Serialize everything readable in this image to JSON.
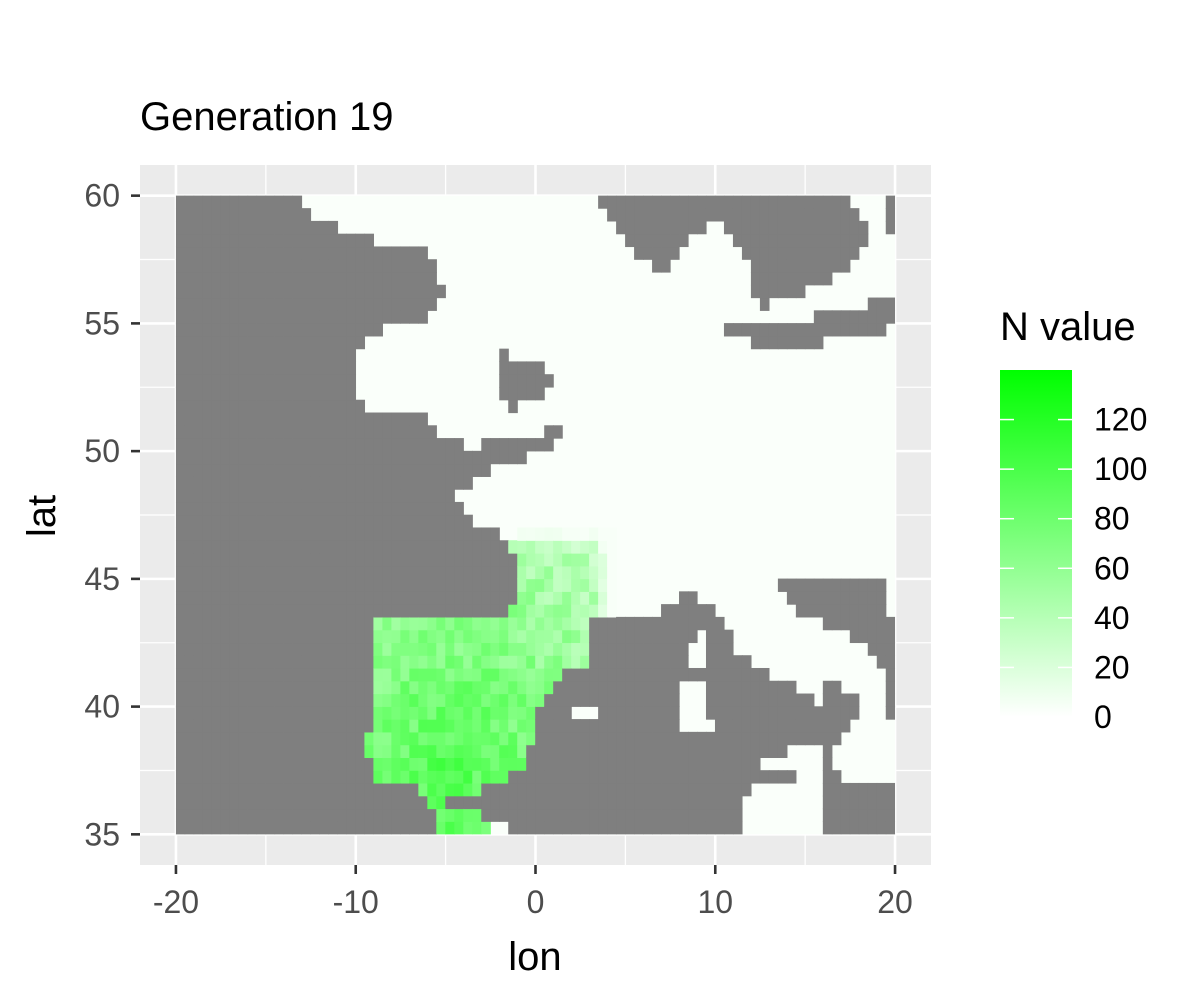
{
  "chart_data": {
    "type": "heatmap",
    "title": "Generation 19",
    "xlabel": "lon",
    "ylabel": "lat",
    "xlim": [
      -22,
      22
    ],
    "ylim": [
      33.8,
      61.2
    ],
    "x_ticks": [
      -20,
      -10,
      0,
      10,
      20
    ],
    "x_tick_labels": [
      "-20",
      "-10",
      "0",
      "10",
      "20"
    ],
    "y_ticks": [
      35,
      40,
      45,
      50,
      55,
      60
    ],
    "y_tick_labels": [
      "35",
      "40",
      "45",
      "50",
      "55",
      "60"
    ],
    "grid": true,
    "panel_background": "#ebebeb",
    "grid_color": "#ffffff",
    "sea_color": "#7f7f7f",
    "land_zero_color": "#fafffa",
    "legend": {
      "title": "N value",
      "position": "right",
      "breaks": [
        0,
        20,
        40,
        60,
        80,
        100,
        120
      ],
      "labels": [
        "0",
        "20",
        "40",
        "60",
        "80",
        "100",
        "120"
      ],
      "range": [
        0,
        140
      ],
      "low_color": "#ffffff",
      "high_color": "#00ff00"
    },
    "grid_extent": {
      "lon": [
        -20,
        20
      ],
      "lat": [
        35,
        60
      ]
    },
    "cell_size_deg": 0.5,
    "sea_polygons": [
      [
        [
          -20,
          35
        ],
        [
          -20,
          60
        ],
        [
          -13.5,
          60
        ],
        [
          -12,
          59
        ],
        [
          -8,
          58
        ],
        [
          -6,
          58
        ],
        [
          -5,
          56
        ],
        [
          -6,
          55
        ],
        [
          -8,
          55
        ],
        [
          -10,
          54
        ],
        [
          -10,
          52
        ],
        [
          -9,
          51.5
        ],
        [
          -6,
          51.5
        ],
        [
          -5,
          50.3
        ],
        [
          -3,
          50.2
        ],
        [
          -1,
          50.6
        ],
        [
          1,
          50.8
        ],
        [
          1.5,
          51
        ],
        [
          1,
          50
        ],
        [
          -2,
          49.5
        ],
        [
          -4.5,
          48.4
        ],
        [
          -4,
          47.5
        ],
        [
          -2.5,
          47
        ],
        [
          -1.2,
          46
        ],
        [
          -1.2,
          44
        ],
        [
          -2,
          43.4
        ],
        [
          -4,
          43.5
        ],
        [
          -7,
          43.7
        ],
        [
          -9,
          43.2
        ],
        [
          -9,
          42
        ],
        [
          -8.8,
          40
        ],
        [
          -9.5,
          38.7
        ],
        [
          -8.8,
          37
        ],
        [
          -7,
          37
        ],
        [
          -6,
          36.2
        ],
        [
          -5.5,
          35.5
        ],
        [
          -5,
          35
        ],
        [
          -20,
          35
        ]
      ],
      [
        [
          -1.5,
          35
        ],
        [
          0,
          35.7
        ],
        [
          3,
          36.8
        ],
        [
          6,
          37
        ],
        [
          9,
          37.2
        ],
        [
          10,
          37
        ],
        [
          11,
          36.7
        ],
        [
          11,
          35
        ],
        [
          -1.5,
          35
        ]
      ],
      [
        [
          3,
          43.3
        ],
        [
          3,
          41.8
        ],
        [
          1,
          41
        ],
        [
          0,
          39.5
        ],
        [
          0.2,
          38.7
        ],
        [
          -0.5,
          38.2
        ],
        [
          -0.8,
          37.6
        ],
        [
          -2,
          36.8
        ],
        [
          -4,
          36.7
        ],
        [
          -5.2,
          36.2
        ],
        [
          -3,
          35.7
        ],
        [
          -1.5,
          35.2
        ],
        [
          -1.3,
          35
        ],
        [
          11.2,
          35
        ],
        [
          12,
          37
        ],
        [
          14,
          37
        ],
        [
          15.5,
          38
        ],
        [
          16,
          38.5
        ],
        [
          16.5,
          39.5
        ],
        [
          15.5,
          40.3
        ],
        [
          14,
          41
        ],
        [
          13,
          41.2
        ],
        [
          11,
          42.4
        ],
        [
          10.2,
          43.8
        ],
        [
          8.5,
          44.4
        ],
        [
          7,
          43.7
        ],
        [
          5,
          43.3
        ],
        [
          3,
          43.3
        ]
      ],
      [
        [
          14,
          45
        ],
        [
          13.5,
          44.5
        ],
        [
          15,
          43.5
        ],
        [
          17,
          43
        ],
        [
          19,
          42
        ],
        [
          19.5,
          41
        ],
        [
          19.3,
          40
        ],
        [
          20,
          39
        ],
        [
          20,
          42
        ],
        [
          19.5,
          45
        ],
        [
          14,
          45
        ]
      ],
      [
        [
          16,
          41
        ],
        [
          17,
          40.7
        ],
        [
          18.5,
          40.1
        ],
        [
          17,
          39
        ],
        [
          16.5,
          38
        ],
        [
          17.5,
          37
        ],
        [
          20,
          37
        ],
        [
          20,
          35
        ],
        [
          16,
          35
        ],
        [
          16,
          41
        ]
      ],
      [
        [
          -2,
          53.8
        ],
        [
          -2,
          52
        ],
        [
          -1.5,
          51.6
        ],
        [
          1.5,
          52.5
        ],
        [
          0,
          53.5
        ],
        [
          -2,
          53.8
        ]
      ],
      [
        [
          3.5,
          60
        ],
        [
          5,
          58
        ],
        [
          7,
          57
        ],
        [
          8,
          57.8
        ],
        [
          9,
          58.5
        ],
        [
          10.5,
          59
        ],
        [
          11.5,
          58
        ],
        [
          12.2,
          56
        ],
        [
          12.8,
          55.6
        ],
        [
          14,
          56
        ],
        [
          16,
          56.5
        ],
        [
          18,
          57.5
        ],
        [
          18.5,
          58.7
        ],
        [
          17,
          60
        ],
        [
          3.5,
          60
        ]
      ],
      [
        [
          10,
          55
        ],
        [
          12,
          54.2
        ],
        [
          14,
          54
        ],
        [
          18,
          54.5
        ],
        [
          21,
          55
        ],
        [
          20,
          56
        ],
        [
          17,
          55.5
        ],
        [
          14,
          55
        ],
        [
          12,
          55
        ],
        [
          10,
          55
        ]
      ],
      [
        [
          19.5,
          60
        ],
        [
          19.5,
          59
        ],
        [
          20,
          58
        ],
        [
          20,
          60
        ],
        [
          19.5,
          60
        ]
      ]
    ],
    "land_patches": [
      [
        [
          8.2,
          39
        ],
        [
          9.8,
          39
        ],
        [
          9.6,
          41.2
        ],
        [
          8.2,
          41
        ],
        [
          8.2,
          39
        ]
      ],
      [
        [
          8.6,
          41.5
        ],
        [
          9.6,
          41.5
        ],
        [
          9.4,
          43
        ],
        [
          8.6,
          42.5
        ],
        [
          8.6,
          41.5
        ]
      ],
      [
        [
          12.5,
          37.5
        ],
        [
          15.5,
          37.2
        ],
        [
          15.5,
          38.3
        ],
        [
          13,
          38.2
        ],
        [
          12.5,
          37.5
        ]
      ],
      [
        [
          2,
          39.5
        ],
        [
          3.5,
          39.5
        ],
        [
          3.3,
          40
        ],
        [
          2.3,
          39.9
        ],
        [
          2,
          39.5
        ]
      ],
      [
        [
          -6,
          54.2
        ],
        [
          -5.4,
          54.5
        ],
        [
          -5.5,
          55
        ],
        [
          -6.2,
          54.8
        ],
        [
          -6,
          54.2
        ]
      ],
      [
        [
          -13.4,
          56.3
        ],
        [
          -13.2,
          56.3
        ],
        [
          -13.2,
          56.6
        ],
        [
          -13.4,
          56.6
        ],
        [
          -13.4,
          56.3
        ]
      ]
    ],
    "occupied_region": [
      [
        -9.3,
        43.6
      ],
      [
        -9.3,
        37
      ],
      [
        -7,
        37
      ],
      [
        -6,
        36.2
      ],
      [
        -5.6,
        35
      ],
      [
        -2.4,
        35
      ],
      [
        -2,
        36
      ],
      [
        -1.3,
        36.8
      ],
      [
        -0.7,
        37.6
      ],
      [
        -0.4,
        38.4
      ],
      [
        0.4,
        38.8
      ],
      [
        0.1,
        39.8
      ],
      [
        1.6,
        41.2
      ],
      [
        3,
        41.8
      ],
      [
        3.2,
        43.4
      ],
      [
        4.3,
        43.4
      ],
      [
        4.3,
        46.8
      ],
      [
        0,
        46.9
      ],
      [
        -1.6,
        46.6
      ],
      [
        -1.2,
        44
      ],
      [
        -2,
        43.5
      ],
      [
        -4,
        43.6
      ],
      [
        -7,
        43.8
      ],
      [
        -9.3,
        43.6
      ]
    ],
    "n_value_peak": 140,
    "n_value_peak_location": [
      -4.7,
      37.3
    ]
  }
}
